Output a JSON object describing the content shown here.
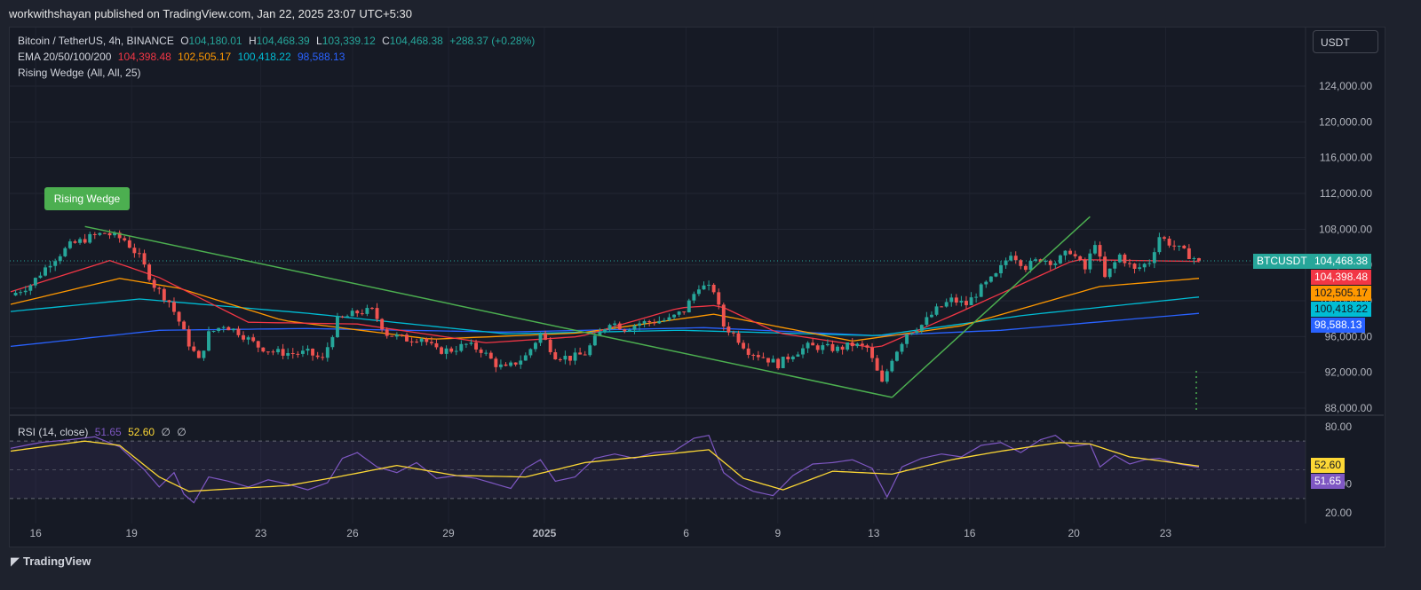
{
  "header": {
    "publisher": "workwithshayan published on TradingView.com, Jan 22, 2025 23:07 UTC+5:30"
  },
  "legend": {
    "symbol": "Bitcoin / TetherUS, 4h, BINANCE",
    "o_label": "O",
    "o_value": "104,180.01",
    "h_label": "H",
    "h_value": "104,468.39",
    "l_label": "L",
    "l_value": "103,339.12",
    "c_label": "C",
    "c_value": "104,468.38",
    "change": "+288.37 (+0.28%)",
    "ema_label": "EMA 20/50/100/200",
    "ema20": "104,398.48",
    "ema50": "102,505.17",
    "ema100": "100,418.22",
    "ema200": "98,588.13",
    "pattern_label": "Rising Wedge (All, All, 25)"
  },
  "currency_button": "USDT",
  "wedge_badge": "Rising Wedge",
  "rsi_legend": {
    "label": "RSI (14, close)",
    "rsi": "51.65",
    "ma": "52.60",
    "extra1": "∅",
    "extra2": "∅"
  },
  "tags": {
    "ticker": "BTCUSDT",
    "last": "104,468.38",
    "ema20": "104,398.48",
    "ema50": "102,505.17",
    "ema100": "100,418.22",
    "ema200": "98,588.13",
    "rsi_ma": "52.60",
    "rsi": "51.65"
  },
  "footer_logo": "TradingView",
  "colors": {
    "up": "#26a69a",
    "down": "#ef5350",
    "ema20": "#f23645",
    "ema50": "#ff9800",
    "ema100": "#00bcd4",
    "ema200": "#2962ff",
    "wedge": "#4caf50",
    "rsi": "#7e57c2",
    "rsi_ma": "#fdd835"
  },
  "chart_data": [
    {
      "type": "candlestick",
      "title": "Bitcoin / TetherUS, 4h, BINANCE",
      "x_ticks": [
        "16",
        "19",
        "23",
        "26",
        "29",
        "2025",
        "6",
        "9",
        "13",
        "16",
        "20",
        "23"
      ],
      "y_ticks": [
        "88,000.00",
        "92,000.00",
        "96,000.00",
        "100,000.00",
        "104,000.00",
        "108,000.00",
        "112,000.00",
        "116,000.00",
        "120,000.00",
        "124,000.00"
      ],
      "ylim": [
        87000,
        127600
      ],
      "price_path": [
        [
          0,
          100600
        ],
        [
          4,
          101800
        ],
        [
          8,
          104300
        ],
        [
          12,
          106200
        ],
        [
          16,
          107100
        ],
        [
          19,
          107600
        ],
        [
          23,
          106800
        ],
        [
          26,
          104900
        ],
        [
          29,
          101700
        ],
        [
          32,
          99900
        ],
        [
          34,
          97700
        ],
        [
          36,
          95200
        ],
        [
          38,
          93300
        ],
        [
          40,
          96300
        ],
        [
          43,
          97300
        ],
        [
          46,
          96500
        ],
        [
          50,
          94900
        ],
        [
          53,
          94300
        ],
        [
          57,
          94100
        ],
        [
          60,
          94200
        ],
        [
          63,
          93400
        ],
        [
          66,
          97800
        ],
        [
          70,
          98700
        ],
        [
          73,
          98900
        ],
        [
          76,
          96300
        ],
        [
          80,
          95700
        ],
        [
          83,
          95900
        ],
        [
          86,
          94400
        ],
        [
          89,
          94500
        ],
        [
          92,
          95100
        ],
        [
          95,
          94500
        ],
        [
          98,
          92900
        ],
        [
          100,
          92400
        ],
        [
          104,
          93800
        ],
        [
          107,
          96300
        ],
        [
          110,
          93900
        ],
        [
          113,
          93600
        ],
        [
          116,
          94100
        ],
        [
          118,
          95700
        ],
        [
          121,
          97700
        ],
        [
          124,
          96900
        ],
        [
          127,
          97500
        ],
        [
          130,
          97700
        ],
        [
          133,
          97900
        ],
        [
          136,
          98900
        ],
        [
          139,
          101700
        ],
        [
          142,
          101200
        ],
        [
          144,
          97200
        ],
        [
          146,
          96300
        ],
        [
          149,
          94400
        ],
        [
          152,
          93700
        ],
        [
          155,
          92900
        ],
        [
          158,
          94100
        ],
        [
          161,
          94900
        ],
        [
          164,
          94800
        ],
        [
          167,
          94600
        ],
        [
          170,
          95100
        ],
        [
          173,
          94700
        ],
        [
          176,
          90700
        ],
        [
          178,
          93600
        ],
        [
          181,
          96400
        ],
        [
          184,
          97300
        ],
        [
          187,
          99000
        ],
        [
          190,
          100100
        ],
        [
          193,
          99600
        ],
        [
          196,
          101400
        ],
        [
          199,
          102800
        ],
        [
          202,
          105400
        ],
        [
          205,
          103800
        ],
        [
          208,
          104700
        ],
        [
          211,
          104300
        ],
        [
          214,
          105600
        ],
        [
          217,
          103500
        ],
        [
          219,
          106600
        ],
        [
          221,
          102500
        ],
        [
          224,
          105100
        ],
        [
          227,
          103400
        ],
        [
          230,
          104400
        ],
        [
          232,
          107200
        ],
        [
          235,
          106100
        ],
        [
          238,
          105100
        ],
        [
          240,
          104468
        ]
      ],
      "ema20_path": [
        [
          0,
          101000
        ],
        [
          20,
          104500
        ],
        [
          30,
          102600
        ],
        [
          48,
          97600
        ],
        [
          70,
          97400
        ],
        [
          96,
          95300
        ],
        [
          115,
          96000
        ],
        [
          135,
          99200
        ],
        [
          143,
          99500
        ],
        [
          155,
          96400
        ],
        [
          175,
          94700
        ],
        [
          192,
          98800
        ],
        [
          215,
          104600
        ],
        [
          240,
          104398
        ]
      ],
      "ema50_path": [
        [
          0,
          99600
        ],
        [
          22,
          102500
        ],
        [
          34,
          101400
        ],
        [
          55,
          97800
        ],
        [
          85,
          95700
        ],
        [
          115,
          96400
        ],
        [
          142,
          98500
        ],
        [
          170,
          95500
        ],
        [
          192,
          97200
        ],
        [
          220,
          101600
        ],
        [
          240,
          102505
        ]
      ],
      "ema100_path": [
        [
          0,
          98800
        ],
        [
          26,
          100200
        ],
        [
          60,
          98600
        ],
        [
          100,
          96300
        ],
        [
          135,
          96700
        ],
        [
          175,
          96100
        ],
        [
          205,
          98400
        ],
        [
          240,
          100418
        ]
      ],
      "ema200_path": [
        [
          0,
          94900
        ],
        [
          30,
          96700
        ],
        [
          60,
          96900
        ],
        [
          100,
          96500
        ],
        [
          140,
          97000
        ],
        [
          175,
          96100
        ],
        [
          200,
          96700
        ],
        [
          240,
          98588
        ]
      ],
      "wedge_line_1": [
        [
          15,
          108300
        ],
        [
          178,
          89200
        ]
      ],
      "wedge_line_2": [
        [
          178,
          89200
        ],
        [
          218,
          109400
        ]
      ],
      "last_price": 104468.38,
      "series": [
        {
          "name": "EMA 20",
          "value": 104398.48
        },
        {
          "name": "EMA 50",
          "value": 102505.17
        },
        {
          "name": "EMA 100",
          "value": 100418.22
        },
        {
          "name": "EMA 200",
          "value": 98588.13
        }
      ]
    },
    {
      "type": "line",
      "title": "RSI (14, close)",
      "y_ticks": [
        "20.00",
        "40.00",
        "80.00"
      ],
      "ylim": [
        16,
        80
      ],
      "bands": [
        30,
        50,
        70
      ],
      "rsi_path": [
        [
          0,
          65
        ],
        [
          6,
          69
        ],
        [
          12,
          71
        ],
        [
          17,
          73
        ],
        [
          22,
          66
        ],
        [
          27,
          50
        ],
        [
          30,
          38
        ],
        [
          33,
          48
        ],
        [
          35,
          33
        ],
        [
          37,
          27
        ],
        [
          40,
          45
        ],
        [
          44,
          42
        ],
        [
          48,
          38
        ],
        [
          52,
          43
        ],
        [
          56,
          40
        ],
        [
          60,
          36
        ],
        [
          64,
          41
        ],
        [
          67,
          58
        ],
        [
          70,
          62
        ],
        [
          74,
          52
        ],
        [
          78,
          48
        ],
        [
          82,
          55
        ],
        [
          86,
          44
        ],
        [
          90,
          46
        ],
        [
          94,
          44
        ],
        [
          98,
          40
        ],
        [
          101,
          37
        ],
        [
          104,
          51
        ],
        [
          107,
          57
        ],
        [
          110,
          42
        ],
        [
          114,
          45
        ],
        [
          118,
          58
        ],
        [
          122,
          61
        ],
        [
          126,
          58
        ],
        [
          130,
          62
        ],
        [
          134,
          63
        ],
        [
          138,
          72
        ],
        [
          141,
          74
        ],
        [
          144,
          48
        ],
        [
          147,
          40
        ],
        [
          150,
          35
        ],
        [
          154,
          32
        ],
        [
          158,
          46
        ],
        [
          162,
          54
        ],
        [
          166,
          55
        ],
        [
          170,
          57
        ],
        [
          174,
          51
        ],
        [
          177,
          31
        ],
        [
          180,
          52
        ],
        [
          184,
          58
        ],
        [
          188,
          61
        ],
        [
          192,
          59
        ],
        [
          196,
          67
        ],
        [
          200,
          69
        ],
        [
          204,
          62
        ],
        [
          208,
          71
        ],
        [
          211,
          74
        ],
        [
          214,
          66
        ],
        [
          218,
          68
        ],
        [
          220,
          52
        ],
        [
          223,
          60
        ],
        [
          226,
          54
        ],
        [
          229,
          57
        ],
        [
          232,
          58
        ],
        [
          236,
          54
        ],
        [
          240,
          51.65
        ]
      ],
      "rsi_ma_path": [
        [
          0,
          63
        ],
        [
          15,
          70
        ],
        [
          22,
          67
        ],
        [
          30,
          45
        ],
        [
          36,
          35
        ],
        [
          46,
          37
        ],
        [
          56,
          39
        ],
        [
          66,
          45
        ],
        [
          78,
          53
        ],
        [
          90,
          46
        ],
        [
          104,
          45
        ],
        [
          116,
          55
        ],
        [
          130,
          60
        ],
        [
          141,
          64
        ],
        [
          148,
          44
        ],
        [
          156,
          36
        ],
        [
          166,
          49
        ],
        [
          178,
          47
        ],
        [
          190,
          57
        ],
        [
          200,
          63
        ],
        [
          212,
          69
        ],
        [
          218,
          68
        ],
        [
          226,
          59
        ],
        [
          240,
          52.6
        ]
      ]
    }
  ]
}
